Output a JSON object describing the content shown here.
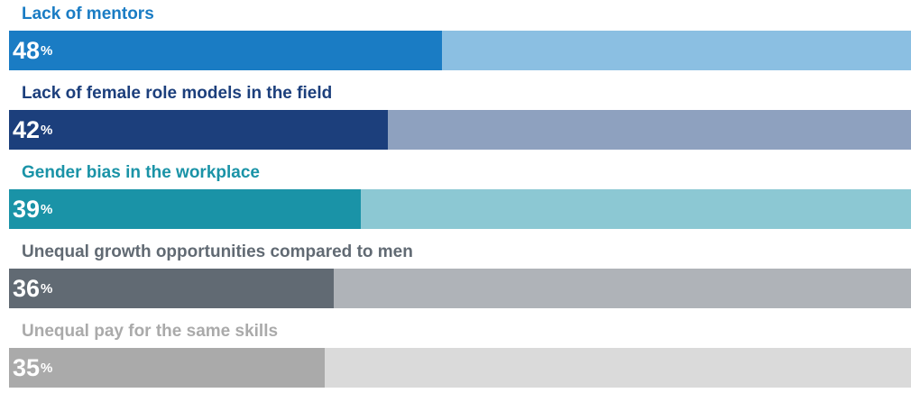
{
  "chart_data": {
    "type": "bar",
    "orientation": "horizontal",
    "value_suffix": "%",
    "xlim": [
      0,
      100
    ],
    "grid": false,
    "categories": [
      "Lack of mentors",
      "Lack of female role models in the field",
      "Gender bias in the workplace",
      "Unequal growth opportunities compared to men",
      "Unequal pay for the same skills"
    ],
    "values": [
      48,
      42,
      39,
      36,
      35
    ],
    "colors": [
      {
        "label": "#1a7cc4",
        "fill": "#1a7cc4",
        "track": "#8bbfe2"
      },
      {
        "label": "#1c3f7c",
        "fill": "#1c3f7c",
        "track": "#8ea1bf"
      },
      {
        "label": "#1a93a7",
        "fill": "#1a93a7",
        "track": "#8cc8d3"
      },
      {
        "label": "#616a73",
        "fill": "#616a73",
        "track": "#afb3b8"
      },
      {
        "label": "#aaaaaa",
        "fill": "#aaaaaa",
        "track": "#dadada"
      }
    ]
  }
}
